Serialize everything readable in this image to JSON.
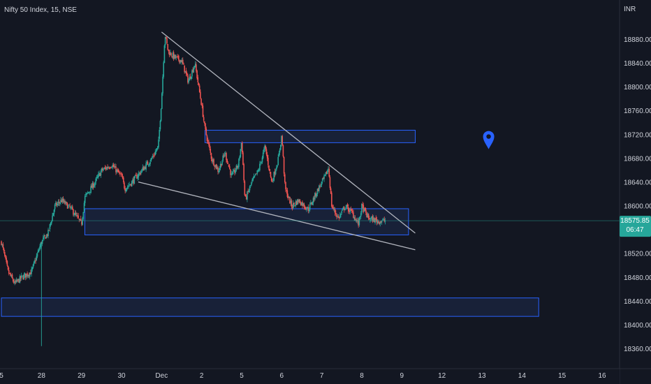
{
  "header": {
    "title": "Nifty 50 Index, 15, NSE",
    "currency": "INR"
  },
  "price_badge": {
    "price": "18575.85",
    "countdown": "06:47",
    "color": "#26a69a"
  },
  "colors": {
    "up": "#26a69a",
    "down": "#ef5350",
    "zone_border": "#2962ff",
    "zone_fill": "#1e2a4a",
    "trendline": "#b2b5be",
    "marker": "#2962ff"
  },
  "chart_data": {
    "type": "candlestick",
    "title": "Nifty 50 Index, 15, NSE",
    "ylabel": "INR",
    "ylim": [
      18335,
      18935
    ],
    "y_ticks": [
      18360,
      18400,
      18440,
      18480,
      18520,
      18560,
      18600,
      18640,
      18680,
      18720,
      18760,
      18800,
      18840,
      18880
    ],
    "y_tick_labels": [
      "18360.00",
      "18400.00",
      "18440.00",
      "18480.00",
      "18520.00",
      "18560.00",
      "18600.00",
      "18640.00",
      "18680.00",
      "18720.00",
      "18760.00",
      "18800.00",
      "18840.00",
      "18880.00"
    ],
    "x_ticks": [
      {
        "label": "5",
        "slot": 0
      },
      {
        "label": "28",
        "slot": 12
      },
      {
        "label": "29",
        "slot": 24
      },
      {
        "label": "30",
        "slot": 36
      },
      {
        "label": "Dec",
        "slot": 48
      },
      {
        "label": "2",
        "slot": 60
      },
      {
        "label": "5",
        "slot": 72
      },
      {
        "label": "6",
        "slot": 84
      },
      {
        "label": "7",
        "slot": 96
      },
      {
        "label": "8",
        "slot": 108
      },
      {
        "label": "9",
        "slot": 120
      },
      {
        "label": "12",
        "slot": 132
      },
      {
        "label": "13",
        "slot": 144
      },
      {
        "label": "14",
        "slot": 156
      },
      {
        "label": "15",
        "slot": 168
      },
      {
        "label": "16",
        "slot": 180
      }
    ],
    "x_range_slots": [
      0,
      180
    ],
    "path": [
      [
        0,
        18540
      ],
      [
        2,
        18490
      ],
      [
        4,
        18470
      ],
      [
        6,
        18480
      ],
      [
        9,
        18490
      ],
      [
        12,
        18540
      ],
      [
        14,
        18555
      ],
      [
        16,
        18600
      ],
      [
        18,
        18610
      ],
      [
        21,
        18595
      ],
      [
        24,
        18570
      ],
      [
        25,
        18615
      ],
      [
        28,
        18640
      ],
      [
        30,
        18660
      ],
      [
        33,
        18670
      ],
      [
        36,
        18650
      ],
      [
        37,
        18630
      ],
      [
        39,
        18640
      ],
      [
        42,
        18660
      ],
      [
        45,
        18680
      ],
      [
        47,
        18700
      ],
      [
        48,
        18780
      ],
      [
        49,
        18890
      ],
      [
        50,
        18860
      ],
      [
        52,
        18850
      ],
      [
        54,
        18845
      ],
      [
        56,
        18810
      ],
      [
        58,
        18840
      ],
      [
        60,
        18770
      ],
      [
        61,
        18730
      ],
      [
        63,
        18680
      ],
      [
        65,
        18660
      ],
      [
        67,
        18690
      ],
      [
        69,
        18650
      ],
      [
        71,
        18670
      ],
      [
        72,
        18710
      ],
      [
        73,
        18610
      ],
      [
        75,
        18640
      ],
      [
        77,
        18660
      ],
      [
        79,
        18700
      ],
      [
        81,
        18640
      ],
      [
        83,
        18680
      ],
      [
        84,
        18720
      ],
      [
        85,
        18630
      ],
      [
        87,
        18600
      ],
      [
        89,
        18610
      ],
      [
        92,
        18595
      ],
      [
        95,
        18630
      ],
      [
        97,
        18650
      ],
      [
        98,
        18665
      ],
      [
        99,
        18600
      ],
      [
        101,
        18580
      ],
      [
        103,
        18600
      ],
      [
        105,
        18590
      ],
      [
        107,
        18570
      ],
      [
        108,
        18600
      ],
      [
        110,
        18580
      ],
      [
        113,
        18575
      ],
      [
        115,
        18576
      ]
    ],
    "zones": [
      {
        "start_slot": 61,
        "end_slot": 124,
        "low": 18707,
        "high": 18728
      },
      {
        "start_slot": 25,
        "end_slot": 122,
        "low": 18552,
        "high": 18596
      },
      {
        "start_slot": 0,
        "end_slot": 161,
        "low": 18415,
        "high": 18446
      }
    ],
    "trendlines": [
      {
        "from": [
          48,
          18893
        ],
        "to": [
          124,
          18555
        ]
      },
      {
        "from": [
          41,
          18641
        ],
        "to": [
          124,
          18527
        ]
      }
    ],
    "marker": {
      "slot": 146,
      "price": 18715
    },
    "last_price": 18575.85
  }
}
